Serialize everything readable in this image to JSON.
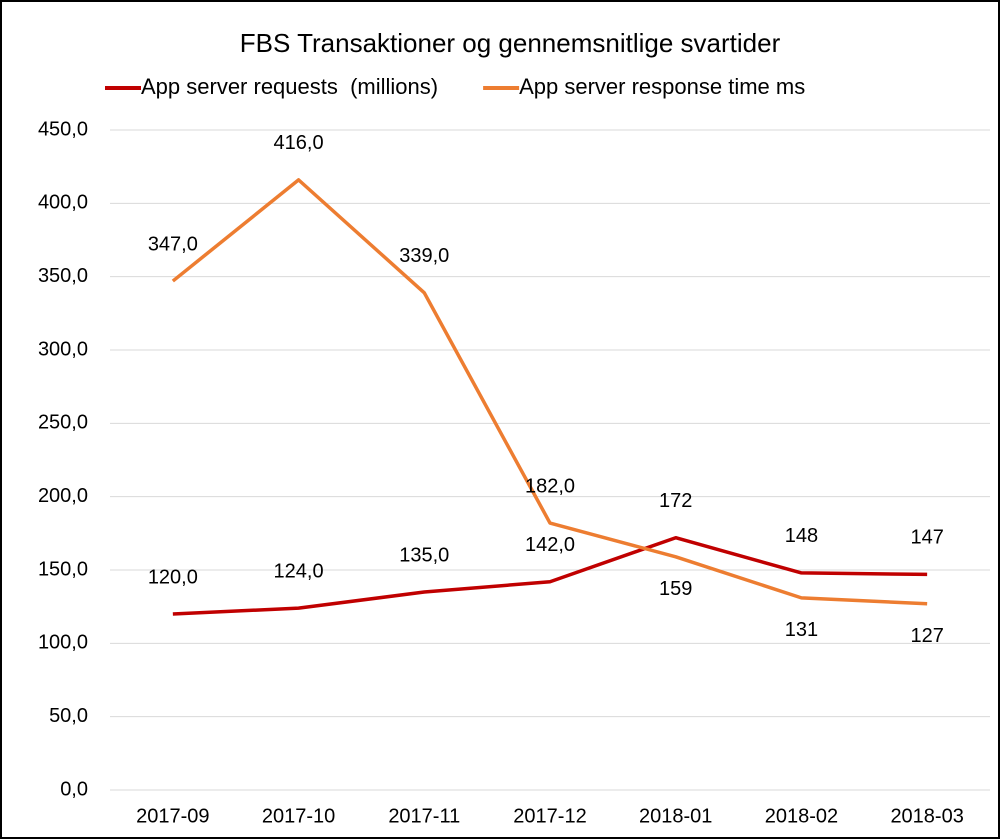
{
  "chart_data": {
    "type": "line",
    "title": "FBS Transaktioner og gennemsnitlige svartider",
    "categories": [
      "2017-09",
      "2017-10",
      "2017-11",
      "2017-12",
      "2018-01",
      "2018-02",
      "2018-03"
    ],
    "series": [
      {
        "name": "App server requests  (millions)",
        "color": "#c00000",
        "values": [
          120,
          124,
          135,
          142,
          172,
          148,
          147
        ],
        "value_labels": [
          "120,0",
          "124,0",
          "135,0",
          "142,0",
          "172",
          "148",
          "147"
        ]
      },
      {
        "name": "App server response time ms",
        "color": "#ed7d31",
        "values": [
          347,
          416,
          339,
          182,
          159,
          131,
          127
        ],
        "value_labels": [
          "347,0",
          "416,0",
          "339,0",
          "182,0",
          "159",
          "131",
          "127"
        ]
      }
    ],
    "ylim": [
      0,
      450
    ],
    "yticks": [
      {
        "value": 0,
        "label": "0,0"
      },
      {
        "value": 50,
        "label": "50,0"
      },
      {
        "value": 100,
        "label": "100,0"
      },
      {
        "value": 150,
        "label": "150,0"
      },
      {
        "value": 200,
        "label": "200,0"
      },
      {
        "value": 250,
        "label": "250,0"
      },
      {
        "value": 300,
        "label": "300,0"
      },
      {
        "value": 350,
        "label": "350,0"
      },
      {
        "value": 400,
        "label": "400,0"
      },
      {
        "value": 450,
        "label": "450,0"
      }
    ],
    "grid": true,
    "legend": "top"
  }
}
